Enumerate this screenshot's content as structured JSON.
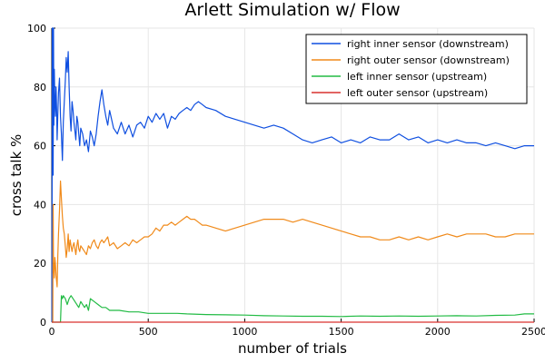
{
  "chart_data": {
    "type": "line",
    "title": "Arlett Simulation w/ Flow",
    "xlabel": "number of trials",
    "ylabel": "cross talk %",
    "xlim": [
      0,
      2500
    ],
    "ylim": [
      0,
      100
    ],
    "xticks": [
      0,
      500,
      1000,
      1500,
      2000,
      2500
    ],
    "yticks": [
      0,
      20,
      40,
      60,
      80,
      100
    ],
    "grid": true,
    "legend_position": "top-right",
    "series": [
      {
        "name": "right inner sensor (downstream)",
        "color": "#0f4fe0",
        "x": [
          1,
          3,
          5,
          7,
          9,
          11,
          13,
          16,
          19,
          22,
          25,
          28,
          31,
          35,
          40,
          45,
          50,
          55,
          60,
          65,
          70,
          75,
          80,
          85,
          90,
          95,
          100,
          105,
          110,
          115,
          120,
          125,
          130,
          135,
          140,
          145,
          150,
          160,
          170,
          180,
          190,
          200,
          210,
          220,
          230,
          240,
          250,
          260,
          270,
          280,
          290,
          300,
          320,
          340,
          360,
          380,
          400,
          420,
          440,
          460,
          480,
          500,
          520,
          540,
          560,
          580,
          600,
          620,
          640,
          660,
          680,
          700,
          720,
          740,
          760,
          780,
          800,
          850,
          900,
          950,
          1000,
          1050,
          1100,
          1150,
          1200,
          1250,
          1300,
          1350,
          1400,
          1450,
          1500,
          1550,
          1600,
          1650,
          1700,
          1750,
          1800,
          1850,
          1900,
          1950,
          2000,
          2050,
          2100,
          2150,
          2200,
          2250,
          2300,
          2350,
          2400,
          2450,
          2500
        ],
        "y": [
          0,
          100,
          100,
          50,
          100,
          67,
          86,
          75,
          70,
          80,
          73,
          62,
          70,
          78,
          83,
          70,
          64,
          55,
          68,
          75,
          82,
          90,
          85,
          92,
          80,
          70,
          65,
          75,
          72,
          68,
          65,
          62,
          70,
          68,
          64,
          60,
          66,
          64,
          60,
          62,
          58,
          65,
          63,
          60,
          64,
          70,
          75,
          79,
          74,
          70,
          67,
          72,
          66,
          64,
          68,
          64,
          67,
          63,
          67,
          68,
          66,
          70,
          68,
          71,
          69,
          71,
          66,
          70,
          69,
          71,
          72,
          73,
          72,
          74,
          75,
          74,
          73,
          72,
          70,
          69,
          68,
          67,
          66,
          67,
          66,
          64,
          62,
          61,
          62,
          63,
          61,
          62,
          61,
          63,
          62,
          62,
          64,
          62,
          63,
          61,
          62,
          61,
          62,
          61,
          61,
          60,
          61,
          60,
          59,
          60,
          60
        ]
      },
      {
        "name": "right outer sensor (downstream)",
        "color": "#f08a1a",
        "x": [
          1,
          3,
          5,
          7,
          9,
          11,
          13,
          16,
          19,
          22,
          25,
          28,
          31,
          35,
          40,
          45,
          50,
          55,
          60,
          65,
          70,
          75,
          80,
          85,
          90,
          95,
          100,
          105,
          110,
          115,
          120,
          125,
          130,
          135,
          140,
          145,
          150,
          160,
          170,
          180,
          190,
          200,
          210,
          220,
          230,
          240,
          250,
          260,
          270,
          280,
          290,
          300,
          320,
          340,
          360,
          380,
          400,
          420,
          440,
          460,
          480,
          500,
          520,
          540,
          560,
          580,
          600,
          620,
          640,
          660,
          680,
          700,
          720,
          740,
          760,
          780,
          800,
          850,
          900,
          950,
          1000,
          1050,
          1100,
          1150,
          1200,
          1250,
          1300,
          1350,
          1400,
          1450,
          1500,
          1550,
          1600,
          1650,
          1700,
          1750,
          1800,
          1850,
          1900,
          1950,
          2000,
          2050,
          2100,
          2150,
          2200,
          2250,
          2300,
          2350,
          2400,
          2450,
          2500
        ],
        "y": [
          0,
          0,
          0,
          40,
          20,
          18,
          15,
          22,
          20,
          16,
          14,
          12,
          22,
          30,
          38,
          48,
          42,
          36,
          32,
          30,
          26,
          22,
          25,
          30,
          24,
          28,
          26,
          24,
          26,
          27,
          25,
          23,
          26,
          28,
          25,
          24,
          26,
          25,
          24,
          23,
          26,
          25,
          27,
          28,
          26,
          25,
          27,
          28,
          27,
          28,
          29,
          26,
          27,
          25,
          26,
          27,
          26,
          28,
          27,
          28,
          29,
          29,
          30,
          32,
          31,
          33,
          33,
          34,
          33,
          34,
          35,
          36,
          35,
          35,
          34,
          33,
          33,
          32,
          31,
          32,
          33,
          34,
          35,
          35,
          35,
          34,
          35,
          34,
          33,
          32,
          31,
          30,
          29,
          29,
          28,
          28,
          29,
          28,
          29,
          28,
          29,
          30,
          29,
          30,
          30,
          30,
          29,
          29,
          30,
          30,
          30
        ]
      },
      {
        "name": "left inner sensor (upstream)",
        "color": "#22bb44",
        "x": [
          0,
          45,
          50,
          55,
          60,
          70,
          80,
          90,
          100,
          110,
          120,
          130,
          140,
          150,
          160,
          170,
          180,
          190,
          200,
          220,
          240,
          260,
          280,
          300,
          350,
          400,
          450,
          500,
          550,
          600,
          650,
          700,
          800,
          900,
          1000,
          1100,
          1200,
          1300,
          1400,
          1500,
          1600,
          1700,
          1800,
          1900,
          2000,
          2100,
          2200,
          2300,
          2400,
          2450,
          2500
        ],
        "y": [
          0,
          0,
          9,
          8,
          9,
          8,
          6,
          8,
          9,
          8,
          7,
          6,
          5,
          7,
          6,
          5,
          6,
          4,
          8,
          7,
          6,
          5,
          5,
          4,
          4,
          3.5,
          3.5,
          3,
          3,
          3,
          3,
          2.8,
          2.6,
          2.5,
          2.4,
          2.2,
          2.1,
          2.0,
          2.0,
          1.9,
          2.1,
          2.0,
          2.1,
          2.0,
          2.1,
          2.2,
          2.1,
          2.3,
          2.4,
          2.8,
          2.8
        ]
      },
      {
        "name": "left outer sensor (upstream)",
        "color": "#d9302f",
        "x": [
          0,
          2500
        ],
        "y": [
          0,
          0
        ]
      }
    ]
  }
}
